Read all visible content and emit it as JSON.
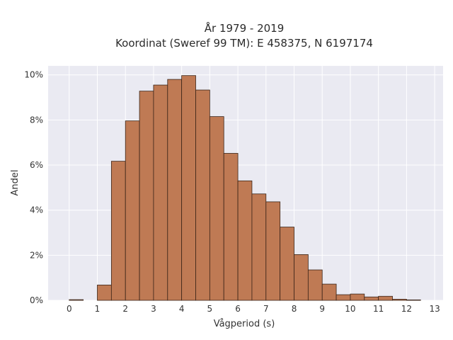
{
  "chart_data": {
    "type": "bar",
    "title": "År 1979 - 2019",
    "subtitle": "Koordinat (Sweref 99 TM): E 458375, N 6197174",
    "xlabel": "Vågperiod (s)",
    "ylabel": "Andel",
    "xlim": [
      -0.75,
      13.3
    ],
    "ylim": [
      0,
      0.104
    ],
    "x_ticks": [
      0,
      1,
      2,
      3,
      4,
      5,
      6,
      7,
      8,
      9,
      10,
      11,
      12,
      13
    ],
    "x_tick_labels": [
      "0",
      "1",
      "2",
      "3",
      "4",
      "5",
      "6",
      "7",
      "8",
      "9",
      "10",
      "11",
      "12",
      "13"
    ],
    "y_ticks": [
      0,
      0.02,
      0.04,
      0.06,
      0.08,
      0.1
    ],
    "y_tick_labels": [
      "0%",
      "2%",
      "4%",
      "6%",
      "8%",
      "10%"
    ],
    "grid": true,
    "bin_width": 0.5,
    "bin_starts": [
      0,
      1,
      1.5,
      2,
      2.5,
      3,
      3.5,
      4,
      4.5,
      5,
      5.5,
      6,
      6.5,
      7,
      7.5,
      8,
      8.5,
      9,
      9.5,
      10,
      10.5,
      11,
      11.5,
      12
    ],
    "values": [
      0.0003,
      0.0068,
      0.0617,
      0.0796,
      0.0928,
      0.0955,
      0.098,
      0.0997,
      0.0933,
      0.0815,
      0.0652,
      0.053,
      0.0472,
      0.0437,
      0.0325,
      0.0203,
      0.0135,
      0.0072,
      0.0025,
      0.0028,
      0.0015,
      0.0018,
      0.0005,
      0.0002
    ],
    "bar_color": "#bf7a54",
    "bar_edge_color": "#3a2418",
    "background_color": "#eaeaf2",
    "grid_color": "#ffffff"
  }
}
